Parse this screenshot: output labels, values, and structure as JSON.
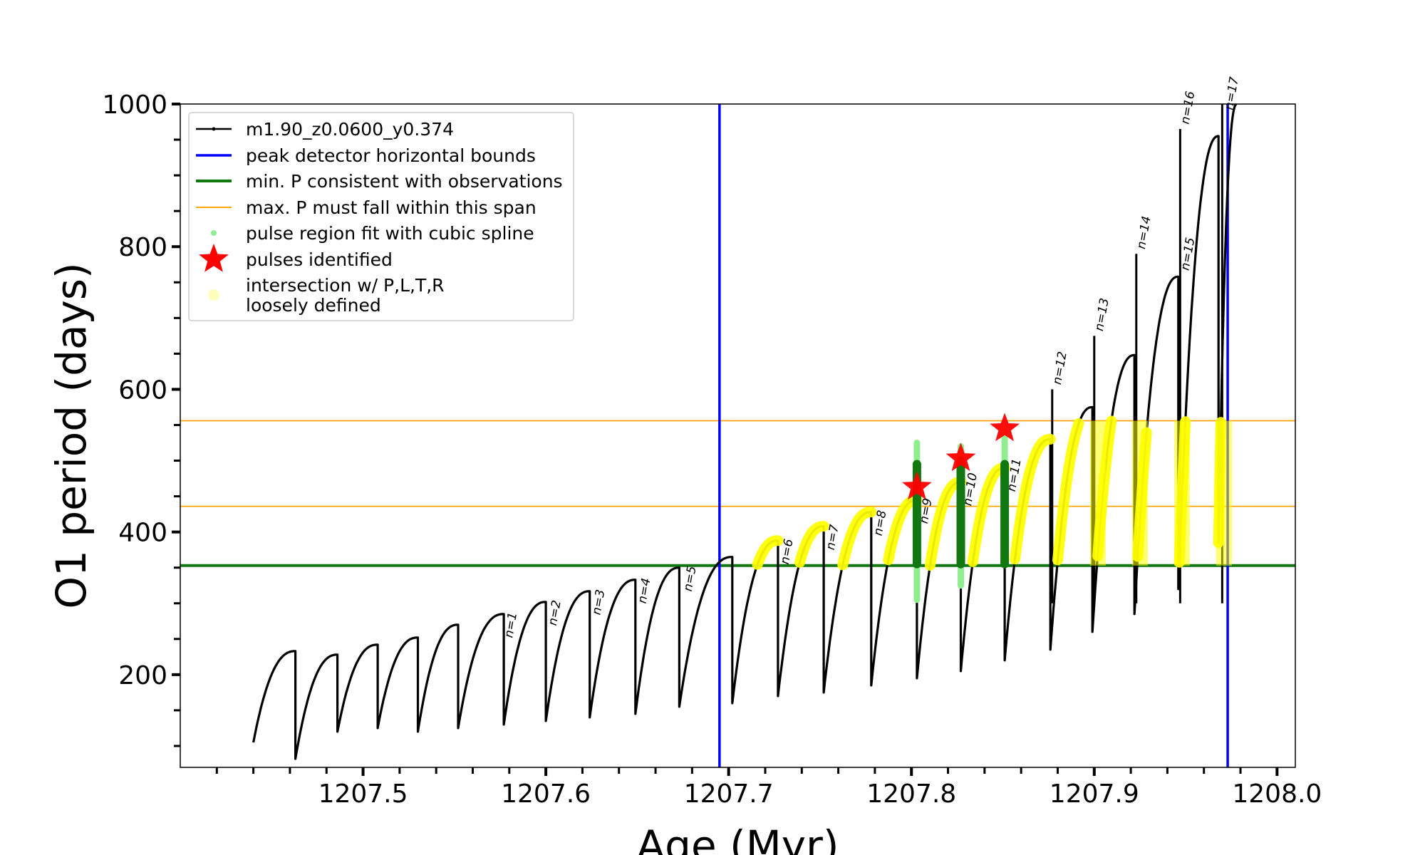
{
  "chart_data": {
    "type": "line",
    "title": "",
    "xlabel": "Age (Myr)",
    "ylabel": "O1 period (days)",
    "xlim": [
      1207.4,
      1208.01
    ],
    "ylim": [
      70,
      1000
    ],
    "x_ticks": [
      1207.5,
      1207.6,
      1207.7,
      1207.8,
      1207.9,
      1208.0
    ],
    "x_tick_labels": [
      "1207.5",
      "1207.6",
      "1207.7",
      "1207.8",
      "1207.9",
      "1208.0"
    ],
    "y_ticks": [
      200,
      400,
      600,
      800,
      1000
    ],
    "y_tick_labels": [
      "200",
      "400",
      "600",
      "800",
      "1000"
    ],
    "grid": false,
    "legend_position": "top-left",
    "colors": {
      "series": "#000000",
      "bounds": "#0000ff",
      "min_p": "#117711",
      "max_p": "#ffa500",
      "spline": "#90ee90",
      "spline_dark": "#117711",
      "star": "#ff0000",
      "highlight": "#ffff00"
    },
    "legend": [
      {
        "label": "m1.90_z0.0600_y0.374",
        "marker": "line-dot",
        "color": "#000000"
      },
      {
        "label": "peak detector horizontal bounds",
        "marker": "line",
        "color": "#0000ff"
      },
      {
        "label": "min. P consistent with observations",
        "marker": "line-thick",
        "color": "#117711"
      },
      {
        "label": "max. P must fall within this span",
        "marker": "line-thin",
        "color": "#ffa500"
      },
      {
        "label": "pulse region fit with cubic spline",
        "marker": "dot",
        "color": "#90ee90"
      },
      {
        "label": "pulses identified",
        "marker": "star",
        "color": "#ff0000"
      },
      {
        "label": "intersection w/ P,L,T,R",
        "marker": "circle",
        "color": "#ffffbb"
      },
      {
        "label": "loosely defined",
        "marker": "none",
        "color": ""
      }
    ],
    "vertical_bounds_x": [
      1207.695,
      1207.973
    ],
    "min_p_line_y": 353,
    "max_p_span_y": [
      436,
      556
    ],
    "series": [
      {
        "name": "m1.90_z0.0600_y0.374",
        "cycles": [
          {
            "start": 1207.44,
            "end": 1207.463,
            "min": 105,
            "max": 233
          },
          {
            "start": 1207.463,
            "end": 1207.486,
            "min": 82,
            "max": 228
          },
          {
            "start": 1207.486,
            "end": 1207.508,
            "min": 120,
            "max": 242
          },
          {
            "start": 1207.508,
            "end": 1207.53,
            "min": 125,
            "max": 252
          },
          {
            "start": 1207.53,
            "end": 1207.552,
            "min": 120,
            "max": 270
          },
          {
            "start": 1207.552,
            "end": 1207.577,
            "min": 125,
            "max": 285
          },
          {
            "start": 1207.577,
            "end": 1207.6,
            "min": 130,
            "max": 302
          },
          {
            "start": 1207.6,
            "end": 1207.624,
            "min": 135,
            "max": 317
          },
          {
            "start": 1207.624,
            "end": 1207.649,
            "min": 140,
            "max": 333
          },
          {
            "start": 1207.649,
            "end": 1207.673,
            "min": 145,
            "max": 350
          },
          {
            "start": 1207.673,
            "end": 1207.702,
            "min": 155,
            "max": 365
          },
          {
            "start": 1207.702,
            "end": 1207.727,
            "min": 160,
            "max": 388
          },
          {
            "start": 1207.727,
            "end": 1207.752,
            "min": 170,
            "max": 408
          },
          {
            "start": 1207.752,
            "end": 1207.778,
            "min": 175,
            "max": 428
          },
          {
            "start": 1207.778,
            "end": 1207.803,
            "min": 185,
            "max": 445
          },
          {
            "start": 1207.803,
            "end": 1207.827,
            "min": 195,
            "max": 470
          },
          {
            "start": 1207.827,
            "end": 1207.851,
            "min": 205,
            "max": 490
          },
          {
            "start": 1207.851,
            "end": 1207.876,
            "min": 220,
            "max": 530
          },
          {
            "start": 1207.876,
            "end": 1207.899,
            "min": 235,
            "max": 575
          },
          {
            "start": 1207.899,
            "end": 1207.922,
            "min": 260,
            "max": 648
          },
          {
            "start": 1207.922,
            "end": 1207.946,
            "min": 285,
            "max": 758
          },
          {
            "start": 1207.946,
            "end": 1207.968,
            "min": 320,
            "max": 955
          },
          {
            "start": 1207.968,
            "end": 1207.978,
            "min": 385,
            "max": 1000
          }
        ],
        "spike_tops": [
          {
            "x": 1207.947,
            "y": 965
          },
          {
            "x": 1207.923,
            "y": 790
          },
          {
            "x": 1207.9,
            "y": 675
          },
          {
            "x": 1207.877,
            "y": 600
          },
          {
            "x": 1207.97,
            "y": 1000
          }
        ]
      }
    ],
    "pulse_labels": [
      {
        "x": 1207.577,
        "text": "n=1"
      },
      {
        "x": 1207.601,
        "text": "n=2"
      },
      {
        "x": 1207.625,
        "text": "n=3"
      },
      {
        "x": 1207.65,
        "text": "n=4"
      },
      {
        "x": 1207.675,
        "text": "n=5"
      },
      {
        "x": 1207.728,
        "text": "n=6"
      },
      {
        "x": 1207.753,
        "text": "n=7"
      },
      {
        "x": 1207.779,
        "text": "n=8"
      },
      {
        "x": 1207.804,
        "text": "n=9"
      },
      {
        "x": 1207.828,
        "text": "n=10"
      },
      {
        "x": 1207.852,
        "text": "n=11"
      },
      {
        "x": 1207.877,
        "text": "n=12"
      },
      {
        "x": 1207.9,
        "text": "n=13"
      },
      {
        "x": 1207.923,
        "text": "n=14"
      },
      {
        "x": 1207.947,
        "text": "n=15"
      },
      {
        "x": 1207.947,
        "text": "n=16"
      },
      {
        "x": 1207.971,
        "text": "n=17"
      }
    ],
    "stars": [
      {
        "x": 1207.803,
        "y": 463
      },
      {
        "x": 1207.827,
        "y": 503
      },
      {
        "x": 1207.851,
        "y": 545
      }
    ],
    "spline_fits": [
      {
        "x": 1207.803,
        "ymin": 305,
        "ymax": 525,
        "dark_min": 355,
        "dark_max": 495
      },
      {
        "x": 1207.827,
        "ymin": 325,
        "ymax": 520,
        "dark_min": 355,
        "dark_max": 500
      },
      {
        "x": 1207.851,
        "ymin": 355,
        "ymax": 540,
        "dark_min": 355,
        "dark_max": 495
      }
    ]
  }
}
